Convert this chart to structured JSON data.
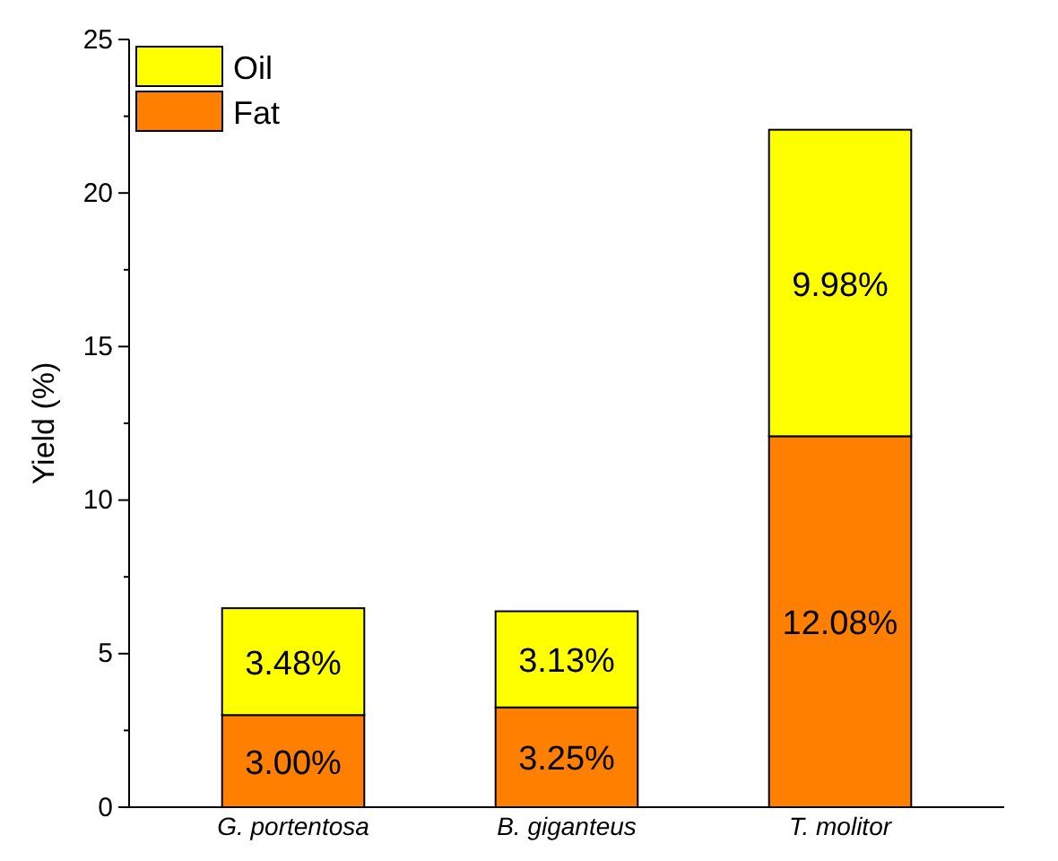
{
  "chart_data": {
    "type": "bar",
    "stacked": true,
    "ylabel": "Yield (%)",
    "categories": [
      "G. portentosa",
      "B. giganteus",
      "T. molitor"
    ],
    "series": [
      {
        "name": "Fat",
        "color": "#ff8000",
        "values": [
          3.0,
          3.25,
          12.08
        ],
        "value_labels": [
          "3.00%",
          "3.25%",
          "12.08%"
        ]
      },
      {
        "name": "Oil",
        "color": "#ffff00",
        "values": [
          3.48,
          3.13,
          9.98
        ],
        "value_labels": [
          "3.48%",
          "3.13%",
          "9.98%"
        ]
      }
    ],
    "ylim": [
      0,
      25
    ],
    "yticks": [
      0,
      {
        "value": 2.5,
        "label": null
      },
      5,
      {
        "value": 7.5,
        "label": null
      },
      10,
      {
        "value": 12.5,
        "label": null
      },
      15,
      {
        "value": 17.5,
        "label": null
      },
      20,
      {
        "value": 22.5,
        "label": null
      },
      25
    ],
    "legend": "top left",
    "grid": false
  }
}
